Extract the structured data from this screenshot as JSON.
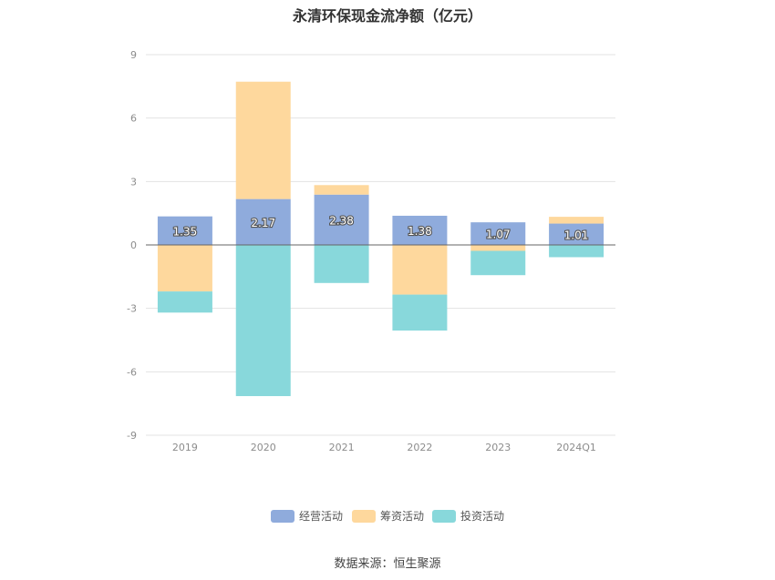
{
  "title": "永清环保现金流净额（亿元）",
  "source": "数据来源：恒生聚源",
  "chart_data": {
    "type": "bar",
    "stacked": true,
    "categories": [
      "2019",
      "2020",
      "2021",
      "2022",
      "2023",
      "2024Q1"
    ],
    "series": [
      {
        "name": "经营活动",
        "color": "#8fabdc",
        "values": [
          1.35,
          2.17,
          2.38,
          1.38,
          1.07,
          1.01
        ],
        "show_labels": true
      },
      {
        "name": "筹资活动",
        "color": "#fed89d",
        "values": [
          -2.2,
          5.55,
          0.45,
          -2.35,
          -0.28,
          0.32
        ],
        "show_labels": false
      },
      {
        "name": "投资活动",
        "color": "#88d8db",
        "values": [
          -1.0,
          -7.15,
          -1.8,
          -1.7,
          -1.15,
          -0.58
        ],
        "show_labels": false
      }
    ],
    "ylim": [
      -9,
      9
    ],
    "yticks": [
      -9,
      -6,
      -3,
      0,
      3,
      6,
      9
    ],
    "grid": true,
    "legend_position": "bottom-center",
    "xlabel": "",
    "ylabel": ""
  }
}
